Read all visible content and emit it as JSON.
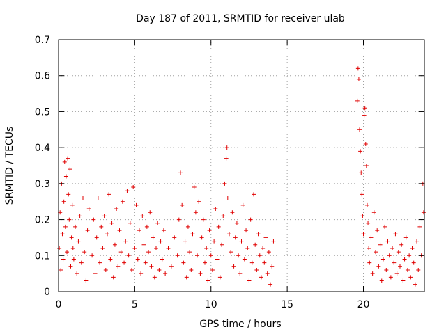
{
  "chart_data": {
    "type": "scatter",
    "title": "Day 187 of 2011, SRMTID for receiver ulab",
    "xlabel": "GPS time / hours",
    "ylabel": "SRMTID / TECUs",
    "xlim": [
      0,
      24
    ],
    "ylim": [
      0,
      0.7
    ],
    "xticks": [
      0,
      5,
      10,
      15,
      20
    ],
    "xtick_labels": [
      "0",
      "5",
      "10",
      "15",
      "20"
    ],
    "yticks": [
      0,
      0.1,
      0.2,
      0.3,
      0.4,
      0.5,
      0.6,
      0.7
    ],
    "ytick_labels": [
      "0",
      "0.1",
      "0.2",
      "0.3",
      "0.4",
      "0.5",
      "0.6",
      "0.7"
    ],
    "grid": true,
    "marker": "plus",
    "color": "#e00000",
    "series": [
      {
        "name": "SRMTID",
        "points": [
          [
            0.05,
            0.12
          ],
          [
            0.1,
            0.22
          ],
          [
            0.15,
            0.06
          ],
          [
            0.2,
            0.3
          ],
          [
            0.25,
            0.16
          ],
          [
            0.3,
            0.09
          ],
          [
            0.35,
            0.25
          ],
          [
            0.4,
            0.36
          ],
          [
            0.45,
            0.18
          ],
          [
            0.5,
            0.32
          ],
          [
            0.55,
            0.11
          ],
          [
            0.6,
            0.37
          ],
          [
            0.65,
            0.27
          ],
          [
            0.7,
            0.2
          ],
          [
            0.75,
            0.34
          ],
          [
            0.8,
            0.07
          ],
          [
            0.85,
            0.15
          ],
          [
            0.9,
            0.24
          ],
          [
            0.95,
            0.12
          ],
          [
            1.0,
            0.09
          ],
          [
            1.1,
            0.18
          ],
          [
            1.2,
            0.05
          ],
          [
            1.3,
            0.14
          ],
          [
            1.4,
            0.21
          ],
          [
            1.5,
            0.08
          ],
          [
            1.6,
            0.26
          ],
          [
            1.7,
            0.11
          ],
          [
            1.8,
            0.03
          ],
          [
            1.9,
            0.17
          ],
          [
            2.0,
            0.23
          ],
          [
            2.2,
            0.1
          ],
          [
            2.3,
            0.2
          ],
          [
            2.4,
            0.05
          ],
          [
            2.5,
            0.15
          ],
          [
            2.6,
            0.26
          ],
          [
            2.7,
            0.08
          ],
          [
            2.8,
            0.18
          ],
          [
            2.9,
            0.12
          ],
          [
            3.0,
            0.21
          ],
          [
            3.1,
            0.06
          ],
          [
            3.2,
            0.16
          ],
          [
            3.3,
            0.27
          ],
          [
            3.4,
            0.09
          ],
          [
            3.5,
            0.19
          ],
          [
            3.6,
            0.04
          ],
          [
            3.7,
            0.13
          ],
          [
            3.8,
            0.23
          ],
          [
            3.9,
            0.07
          ],
          [
            4.0,
            0.17
          ],
          [
            4.1,
            0.11
          ],
          [
            4.2,
            0.25
          ],
          [
            4.3,
            0.08
          ],
          [
            4.4,
            0.14
          ],
          [
            4.5,
            0.28
          ],
          [
            4.6,
            0.1
          ],
          [
            4.7,
            0.19
          ],
          [
            4.8,
            0.06
          ],
          [
            4.9,
            0.29
          ],
          [
            5.0,
            0.12
          ],
          [
            5.1,
            0.24
          ],
          [
            5.2,
            0.09
          ],
          [
            5.3,
            0.17
          ],
          [
            5.4,
            0.05
          ],
          [
            5.5,
            0.21
          ],
          [
            5.6,
            0.13
          ],
          [
            5.7,
            0.08
          ],
          [
            5.8,
            0.18
          ],
          [
            5.9,
            0.11
          ],
          [
            6.0,
            0.22
          ],
          [
            6.1,
            0.07
          ],
          [
            6.2,
            0.15
          ],
          [
            6.3,
            0.04
          ],
          [
            6.4,
            0.12
          ],
          [
            6.5,
            0.19
          ],
          [
            6.6,
            0.06
          ],
          [
            6.7,
            0.14
          ],
          [
            6.8,
            0.09
          ],
          [
            6.9,
            0.17
          ],
          [
            7.0,
            0.05
          ],
          [
            7.2,
            0.12
          ],
          [
            7.4,
            0.07
          ],
          [
            7.6,
            0.15
          ],
          [
            7.8,
            0.1
          ],
          [
            7.9,
            0.2
          ],
          [
            8.0,
            0.33
          ],
          [
            8.1,
            0.24
          ],
          [
            8.2,
            0.08
          ],
          [
            8.3,
            0.14
          ],
          [
            8.4,
            0.04
          ],
          [
            8.5,
            0.18
          ],
          [
            8.6,
            0.11
          ],
          [
            8.7,
            0.06
          ],
          [
            8.8,
            0.16
          ],
          [
            8.9,
            0.29
          ],
          [
            9.0,
            0.22
          ],
          [
            9.1,
            0.1
          ],
          [
            9.2,
            0.25
          ],
          [
            9.3,
            0.05
          ],
          [
            9.4,
            0.15
          ],
          [
            9.5,
            0.2
          ],
          [
            9.6,
            0.08
          ],
          [
            9.7,
            0.12
          ],
          [
            9.8,
            0.03
          ],
          [
            9.9,
            0.17
          ],
          [
            10.0,
            0.1
          ],
          [
            10.1,
            0.06
          ],
          [
            10.2,
            0.14
          ],
          [
            10.3,
            0.23
          ],
          [
            10.4,
            0.09
          ],
          [
            10.5,
            0.18
          ],
          [
            10.6,
            0.04
          ],
          [
            10.7,
            0.13
          ],
          [
            10.8,
            0.21
          ],
          [
            10.9,
            0.3
          ],
          [
            11.0,
            0.37
          ],
          [
            11.05,
            0.4
          ],
          [
            11.1,
            0.26
          ],
          [
            11.2,
            0.16
          ],
          [
            11.3,
            0.11
          ],
          [
            11.4,
            0.22
          ],
          [
            11.5,
            0.07
          ],
          [
            11.6,
            0.15
          ],
          [
            11.7,
            0.19
          ],
          [
            11.8,
            0.1
          ],
          [
            11.9,
            0.05
          ],
          [
            12.0,
            0.14
          ],
          [
            12.1,
            0.24
          ],
          [
            12.2,
            0.09
          ],
          [
            12.3,
            0.17
          ],
          [
            12.4,
            0.12
          ],
          [
            12.5,
            0.03
          ],
          [
            12.6,
            0.2
          ],
          [
            12.7,
            0.08
          ],
          [
            12.8,
            0.27
          ],
          [
            12.9,
            0.13
          ],
          [
            13.0,
            0.06
          ],
          [
            13.1,
            0.16
          ],
          [
            13.2,
            0.1
          ],
          [
            13.3,
            0.04
          ],
          [
            13.4,
            0.12
          ],
          [
            13.5,
            0.08
          ],
          [
            13.6,
            0.15
          ],
          [
            13.7,
            0.05
          ],
          [
            13.8,
            0.11
          ],
          [
            13.9,
            0.02
          ],
          [
            14.0,
            0.07
          ],
          [
            14.1,
            0.14
          ],
          [
            19.6,
            0.53
          ],
          [
            19.65,
            0.62
          ],
          [
            19.7,
            0.59
          ],
          [
            19.75,
            0.45
          ],
          [
            19.8,
            0.39
          ],
          [
            19.85,
            0.33
          ],
          [
            19.9,
            0.27
          ],
          [
            19.95,
            0.21
          ],
          [
            20.0,
            0.16
          ],
          [
            20.05,
            0.49
          ],
          [
            20.1,
            0.51
          ],
          [
            20.15,
            0.41
          ],
          [
            20.2,
            0.35
          ],
          [
            20.25,
            0.24
          ],
          [
            20.3,
            0.19
          ],
          [
            20.35,
            0.12
          ],
          [
            20.4,
            0.08
          ],
          [
            20.5,
            0.15
          ],
          [
            20.6,
            0.05
          ],
          [
            20.7,
            0.22
          ],
          [
            20.8,
            0.11
          ],
          [
            20.9,
            0.17
          ],
          [
            21.0,
            0.07
          ],
          [
            21.1,
            0.13
          ],
          [
            21.2,
            0.03
          ],
          [
            21.3,
            0.09
          ],
          [
            21.4,
            0.18
          ],
          [
            21.5,
            0.06
          ],
          [
            21.6,
            0.14
          ],
          [
            21.7,
            0.1
          ],
          [
            21.8,
            0.04
          ],
          [
            21.9,
            0.12
          ],
          [
            22.0,
            0.08
          ],
          [
            22.1,
            0.16
          ],
          [
            22.2,
            0.05
          ],
          [
            22.3,
            0.11
          ],
          [
            22.4,
            0.07
          ],
          [
            22.5,
            0.13
          ],
          [
            22.6,
            0.03
          ],
          [
            22.7,
            0.09
          ],
          [
            22.8,
            0.15
          ],
          [
            22.9,
            0.06
          ],
          [
            23.0,
            0.1
          ],
          [
            23.1,
            0.04
          ],
          [
            23.2,
            0.12
          ],
          [
            23.3,
            0.08
          ],
          [
            23.4,
            0.02
          ],
          [
            23.5,
            0.14
          ],
          [
            23.6,
            0.06
          ],
          [
            23.7,
            0.18
          ],
          [
            23.8,
            0.1
          ],
          [
            23.9,
            0.3
          ],
          [
            23.95,
            0.22
          ]
        ]
      }
    ]
  }
}
